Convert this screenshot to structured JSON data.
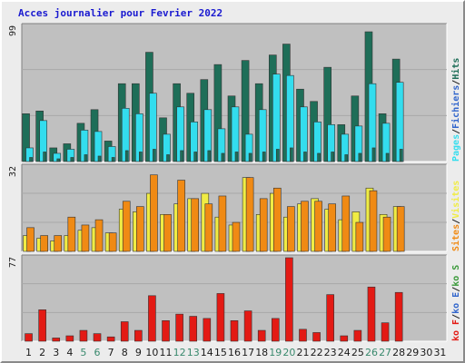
{
  "title": "Acces journalier pour Fevrier 2022",
  "colors": {
    "pages": "#1e6e58",
    "files": "#33ddee",
    "hits": "#1e6e58",
    "visits": "#f0ec44",
    "sites": "#f08a14",
    "kb": "#e31a14",
    "weekend_day": "#3a8a6e",
    "weekday": "#1a1a1a",
    "legend_sep": "#202020",
    "legend_blue": "#3266cc",
    "legend_green": "#3a9a3a"
  },
  "chart_data": [
    {
      "type": "bar",
      "title": "",
      "ymax_label": "99",
      "legend": [
        {
          "text": "Pages",
          "color_key": "files"
        },
        {
          "text": "/",
          "color_key": "legend_sep"
        },
        {
          "text": "Fichiers",
          "color_key": "legend_blue"
        },
        {
          "text": "/",
          "color_key": "legend_sep"
        },
        {
          "text": "Hits",
          "color_key": "hits"
        }
      ],
      "ylim": [
        0,
        99
      ],
      "categories": [
        "1",
        "2",
        "3",
        "4",
        "5",
        "6",
        "7",
        "8",
        "9",
        "10",
        "11",
        "12",
        "13",
        "14",
        "15",
        "16",
        "17",
        "18",
        "19",
        "20",
        "21",
        "22",
        "23",
        "24",
        "25",
        "26",
        "27",
        "28",
        "29",
        "30",
        "31"
      ],
      "series": [
        {
          "name": "Hits",
          "values": [
            35,
            37,
            10,
            13,
            28,
            38,
            15,
            57,
            57,
            80,
            32,
            57,
            50,
            60,
            71,
            48,
            74,
            57,
            78,
            86,
            53,
            44,
            69,
            27,
            48,
            95,
            35,
            75,
            0,
            0,
            0
          ]
        },
        {
          "name": "Fichiers",
          "values": [
            10,
            30,
            6,
            9,
            23,
            22,
            11,
            39,
            35,
            50,
            20,
            40,
            29,
            38,
            24,
            40,
            20,
            38,
            64,
            63,
            40,
            29,
            27,
            20,
            26,
            57,
            28,
            58,
            0,
            0,
            0
          ]
        },
        {
          "name": "Pages",
          "values": [
            3,
            7,
            2,
            3,
            5,
            4,
            3,
            8,
            7,
            9,
            5,
            8,
            7,
            8,
            6,
            7,
            6,
            7,
            9,
            10,
            7,
            6,
            7,
            5,
            6,
            10,
            6,
            9,
            0,
            0,
            0
          ]
        }
      ]
    },
    {
      "type": "bar",
      "title": "",
      "ymax_label": "32",
      "legend": [
        {
          "text": "Sites",
          "color_key": "sites"
        },
        {
          "text": "/",
          "color_key": "legend_sep"
        },
        {
          "text": "Visites",
          "color_key": "visits"
        }
      ],
      "ylim": [
        0,
        32
      ],
      "categories": [
        "1",
        "2",
        "3",
        "4",
        "5",
        "6",
        "7",
        "8",
        "9",
        "10",
        "11",
        "12",
        "13",
        "14",
        "15",
        "16",
        "17",
        "18",
        "19",
        "20",
        "21",
        "22",
        "23",
        "24",
        "25",
        "26",
        "27",
        "28",
        "29",
        "30",
        "31"
      ],
      "series": [
        {
          "name": "Visites",
          "values": [
            6,
            5,
            4,
            6,
            8,
            9,
            7,
            16,
            15,
            22,
            14,
            18,
            20,
            22,
            13,
            10,
            28,
            14,
            22,
            13,
            18,
            20,
            16,
            12,
            15,
            24,
            14,
            17,
            0,
            0,
            0
          ]
        },
        {
          "name": "Sites",
          "values": [
            9,
            6,
            6,
            13,
            10,
            12,
            7,
            19,
            17,
            29,
            14,
            27,
            20,
            18,
            21,
            11,
            28,
            20,
            24,
            17,
            19,
            19,
            18,
            21,
            11,
            23,
            13,
            17,
            0,
            0,
            0
          ]
        }
      ]
    },
    {
      "type": "bar",
      "title": "",
      "ymax_label": "77",
      "legend": [
        {
          "text": "ko F",
          "color_key": "kb"
        },
        {
          "text": "/",
          "color_key": "legend_sep"
        },
        {
          "text": "ko E",
          "color_key": "legend_blue"
        },
        {
          "text": "/",
          "color_key": "legend_sep"
        },
        {
          "text": "ko S",
          "color_key": "legend_green"
        }
      ],
      "ylim": [
        0,
        77
      ],
      "categories": [
        "1",
        "2",
        "3",
        "4",
        "5",
        "6",
        "7",
        "8",
        "9",
        "10",
        "11",
        "12",
        "13",
        "14",
        "15",
        "16",
        "17",
        "18",
        "19",
        "20",
        "21",
        "22",
        "23",
        "24",
        "25",
        "26",
        "27",
        "28",
        "29",
        "30",
        "31"
      ],
      "series": [
        {
          "name": "ko F",
          "values": [
            7,
            29,
            3,
            5,
            10,
            7,
            4,
            18,
            10,
            42,
            19,
            25,
            23,
            21,
            44,
            19,
            28,
            10,
            21,
            77,
            11,
            8,
            43,
            5,
            10,
            50,
            17,
            45,
            0,
            0,
            0
          ]
        }
      ]
    }
  ],
  "x_axis": {
    "labels": [
      "1",
      "2",
      "3",
      "4",
      "5",
      "6",
      "7",
      "8",
      "9",
      "10",
      "11",
      "12",
      "13",
      "14",
      "15",
      "16",
      "17",
      "18",
      "19",
      "20",
      "21",
      "22",
      "23",
      "24",
      "25",
      "26",
      "27",
      "28",
      "29",
      "30",
      "31"
    ],
    "weekend_labels": [
      "5",
      "6",
      "12",
      "13",
      "19",
      "20",
      "26",
      "27"
    ]
  }
}
